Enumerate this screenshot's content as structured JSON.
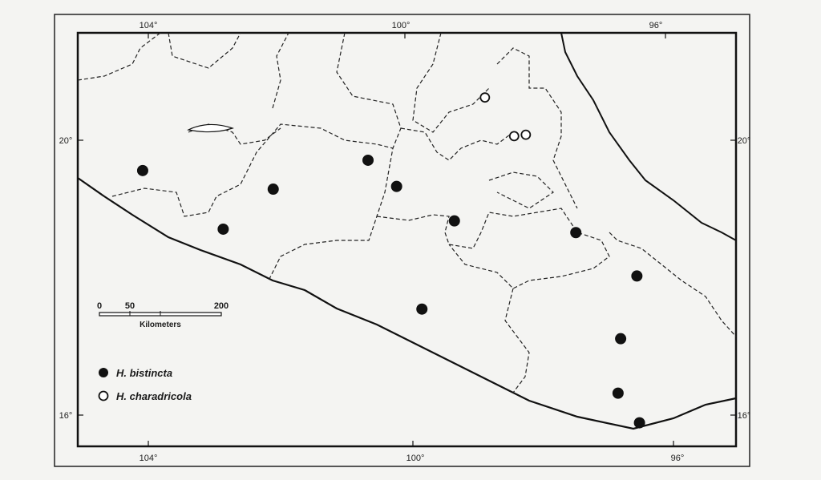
{
  "map": {
    "longitude_labels_top": [
      "104°",
      "100°",
      "96°"
    ],
    "longitude_labels_bottom": [
      "104°",
      "100°",
      "96°"
    ],
    "latitude_labels_left": [
      "20°",
      "16°"
    ],
    "latitude_labels_right": [
      "20°",
      "16°"
    ],
    "scale_bar": {
      "ticks": [
        "0",
        "50",
        "200"
      ],
      "unit": "Kilometers"
    },
    "legend": [
      {
        "label": "H. bistincta",
        "marker": "filled-circle"
      },
      {
        "label": "H. charadricola",
        "marker": "open-circle"
      }
    ],
    "points": {
      "H. bistincta": [
        {
          "lon": 104.05,
          "lat": 19.56
        },
        {
          "lon": 102.04,
          "lat": 19.29
        },
        {
          "lon": 100.58,
          "lat": 19.71
        },
        {
          "lon": 100.14,
          "lat": 19.33
        },
        {
          "lon": 102.81,
          "lat": 18.71
        },
        {
          "lon": 99.25,
          "lat": 18.83
        },
        {
          "lon": 97.38,
          "lat": 18.66
        },
        {
          "lon": 96.44,
          "lat": 18.03
        },
        {
          "lon": 99.75,
          "lat": 17.55
        },
        {
          "lon": 96.69,
          "lat": 17.12
        },
        {
          "lon": 96.73,
          "lat": 16.33
        },
        {
          "lon": 96.4,
          "lat": 15.9
        }
      ],
      "H. charadricola": [
        {
          "lon": 98.78,
          "lat": 20.62
        },
        {
          "lon": 98.33,
          "lat": 20.06
        },
        {
          "lon": 98.15,
          "lat": 20.08
        }
      ]
    }
  }
}
